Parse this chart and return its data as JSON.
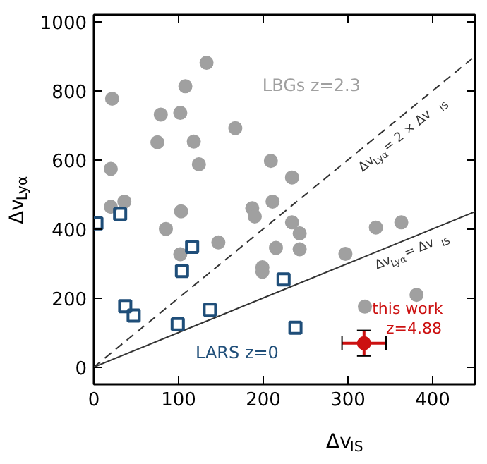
{
  "chart_data": {
    "type": "scatter",
    "xlabel": "Δv$_{IS}$",
    "ylabel": "Δv$_{Lyα}$",
    "xlim": [
      0,
      450
    ],
    "ylim": [
      -50,
      1020
    ],
    "xticks": [
      0,
      100,
      200,
      300,
      400
    ],
    "yticks": [
      0,
      200,
      400,
      600,
      800,
      1000
    ],
    "grid": false,
    "legend": false,
    "series": [
      {
        "type": "line",
        "name": "Δv$_{Lyα}$ = 2 × Δv$_{IS}$",
        "marker": "none",
        "color": "#333333",
        "line_style": "dashed",
        "x": [
          0,
          450
        ],
        "values": [
          0,
          900
        ]
      },
      {
        "type": "line",
        "name": "Δv$_{Lyα}$ = Δv$_{IS}$",
        "marker": "none",
        "color": "#333333",
        "line_style": "solid",
        "x": [
          0,
          450
        ],
        "values": [
          0,
          450
        ]
      },
      {
        "name": "LBGs z=2.3",
        "marker": "circle",
        "color": "#a0a0a0",
        "x": [
          133,
          108,
          21.5,
          79,
          102,
          167,
          75,
          118,
          20,
          124,
          209,
          234,
          20,
          36,
          103,
          187,
          190,
          211,
          234,
          333,
          363,
          85,
          243,
          147,
          102,
          215,
          243,
          297,
          199,
          199,
          320,
          381
        ],
        "values": [
          881,
          813,
          777,
          731,
          736,
          692,
          651,
          653,
          574,
          587,
          597,
          549,
          464,
          479,
          451,
          460,
          436,
          479,
          419,
          404,
          419,
          400,
          387,
          361,
          327,
          345,
          341,
          328,
          289,
          276,
          175,
          209
        ]
      },
      {
        "name": "LARS z=0",
        "marker": "square",
        "color": "#1f4e79",
        "x": [
          3,
          31,
          116,
          104,
          224,
          37,
          47,
          137,
          99,
          238
        ],
        "values": [
          416,
          443,
          348,
          278,
          254,
          176,
          149,
          166,
          124,
          114
        ]
      },
      {
        "name": "this work\nz=4.88",
        "marker": "circle",
        "color": "#cc1111",
        "x": [
          319
        ],
        "values": [
          69
        ],
        "errors": [
          37
        ],
        "xerrors": [
          26
        ]
      }
    ]
  }
}
